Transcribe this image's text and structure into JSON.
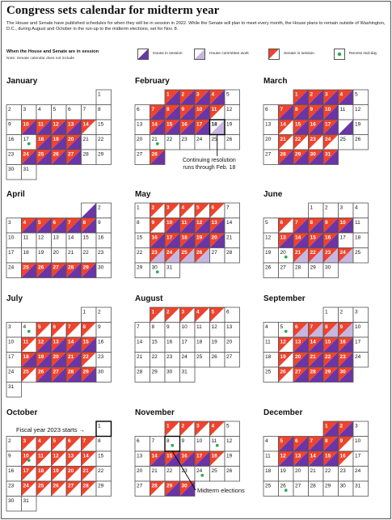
{
  "title": "Congress sets calendar for midterm year",
  "intro": "The House and Senate have published schedules for when they will be in session in 2022. While the Senate will plan to meet every month, the House plans to remain outside of Washington, D.C., during August and October in the run-up to the midterm elections, set for Nov. 8.",
  "legend": {
    "title": "When the House and Senate are in session",
    "note": "Note: Senate calendar does not include",
    "items": [
      {
        "label": "House in session"
      },
      {
        "label": "House committee work"
      },
      {
        "label": "Senate in session"
      },
      {
        "label": "Recess mid-day"
      }
    ]
  },
  "colors": {
    "house": "#6a35a6",
    "committee": "#c7b6df",
    "senate": "#f0432c",
    "dot": "#2faa55",
    "border": "#555555"
  },
  "annotations": {
    "cr": "Continuing resolution\nruns through Feb. 18",
    "fiscal": "Fiscal year 2023 starts",
    "midterm": "Midterm elections"
  },
  "months": [
    {
      "name": "January",
      "start": 6,
      "days": 31,
      "house": [
        10,
        11,
        12,
        13,
        18,
        19,
        20,
        24,
        25,
        26,
        27
      ],
      "senate": [
        10,
        11,
        12,
        13,
        14,
        18,
        19,
        20,
        24,
        25,
        26,
        27
      ],
      "committee": [],
      "dots": [
        17
      ]
    },
    {
      "name": "February",
      "start": 2,
      "days": 28,
      "house": [
        1,
        2,
        3,
        4,
        7,
        8,
        9,
        10,
        14,
        15,
        16,
        17,
        28
      ],
      "senate": [
        1,
        2,
        3,
        4,
        7,
        8,
        9,
        10,
        11,
        14,
        15,
        16,
        17,
        28
      ],
      "committee": [
        18
      ],
      "dots": [
        21
      ]
    },
    {
      "name": "March",
      "start": 2,
      "days": 31,
      "house": [
        1,
        2,
        3,
        4,
        7,
        8,
        9,
        10,
        15,
        16,
        17,
        18,
        28,
        29,
        30,
        31
      ],
      "senate": [
        1,
        2,
        3,
        4,
        7,
        8,
        9,
        10,
        14,
        15,
        16,
        17,
        21,
        22,
        23,
        24,
        28,
        29,
        30,
        31
      ],
      "committee": [],
      "dots": []
    },
    {
      "name": "April",
      "start": 5,
      "days": 30,
      "house": [
        1,
        4,
        5,
        6,
        7,
        8,
        25,
        26,
        27,
        28,
        29
      ],
      "senate": [
        4,
        5,
        6,
        7,
        8,
        25,
        26,
        27,
        28,
        29
      ],
      "committee": [],
      "dots": []
    },
    {
      "name": "May",
      "start": 0,
      "days": 31,
      "house": [
        10,
        11,
        12,
        13,
        16,
        17,
        18,
        19,
        20
      ],
      "senate": [
        2,
        3,
        4,
        5,
        6,
        9,
        10,
        11,
        12,
        13,
        16,
        17,
        18,
        19,
        20,
        23,
        24,
        25,
        26
      ],
      "committee": [
        23,
        24,
        25,
        26
      ],
      "dots": [
        30
      ]
    },
    {
      "name": "June",
      "start": 3,
      "days": 30,
      "house": [
        7,
        8,
        9,
        10,
        13,
        14,
        15,
        16,
        21,
        22,
        23,
        24
      ],
      "senate": [
        6,
        7,
        8,
        9,
        10,
        13,
        14,
        15,
        16,
        21,
        22,
        23,
        24
      ],
      "committee": [
        21,
        22,
        23,
        24
      ],
      "dots": [
        20
      ]
    },
    {
      "name": "July",
      "start": 5,
      "days": 31,
      "house": [
        12,
        13,
        14,
        15,
        18,
        19,
        20,
        21,
        26,
        27,
        28,
        29
      ],
      "senate": [
        5,
        6,
        7,
        8,
        11,
        12,
        13,
        14,
        15,
        18,
        19,
        20,
        21,
        22,
        25,
        26,
        27,
        28,
        29
      ],
      "committee": [],
      "dots": [
        4
      ]
    },
    {
      "name": "August",
      "start": 1,
      "days": 31,
      "house": [],
      "senate": [
        1,
        2,
        3,
        4,
        5
      ],
      "committee": [],
      "dots": []
    },
    {
      "name": "September",
      "start": 4,
      "days": 30,
      "house": [
        13,
        14,
        15,
        16,
        20,
        21,
        22,
        23,
        27,
        28,
        29,
        30
      ],
      "senate": [
        6,
        7,
        8,
        9,
        12,
        13,
        14,
        15,
        16,
        19,
        20,
        21,
        22,
        23,
        26,
        27,
        28,
        29,
        30
      ],
      "committee": [
        6,
        7,
        8,
        9
      ],
      "dots": [
        5
      ]
    },
    {
      "name": "October",
      "start": 6,
      "days": 31,
      "house": [],
      "senate": [
        3,
        4,
        5,
        6,
        7,
        10,
        11,
        12,
        13,
        14,
        17,
        18,
        19,
        20,
        21,
        24,
        25,
        26,
        27,
        28
      ],
      "committee": [],
      "dots": [
        10
      ]
    },
    {
      "name": "November",
      "start": 2,
      "days": 30,
      "house": [
        14,
        15,
        16,
        17,
        29,
        30
      ],
      "senate": [
        1,
        2,
        3,
        4,
        14,
        15,
        16,
        17,
        18,
        28,
        29,
        30
      ],
      "committee": [],
      "dots": [
        8,
        11,
        24
      ]
    },
    {
      "name": "December",
      "start": 4,
      "days": 31,
      "house": [
        1,
        2,
        5,
        6,
        7,
        8,
        12,
        13,
        14,
        15
      ],
      "senate": [
        1,
        2,
        5,
        6,
        7,
        8,
        9,
        12,
        13,
        14,
        15,
        16
      ],
      "committee": [],
      "dots": [
        26
      ]
    }
  ]
}
